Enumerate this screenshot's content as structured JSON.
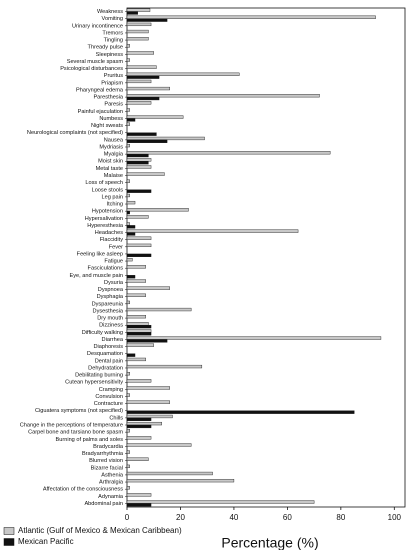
{
  "chart_data": {
    "type": "hbar",
    "x_label": "Percentage (%)",
    "categories": [
      "Weakness",
      "Vomiting",
      "Urinary incontinence",
      "Tremors",
      "Tingling",
      "Thready pulse",
      "Sleepiness",
      "Several muscle spasm",
      "Psicological disturbances",
      "Pruritus",
      "Priapism",
      "Pharyngeal edema",
      "Paresthesia",
      "Paresis",
      "Painful ejaculation",
      "Numbess",
      "Night sweats",
      "Neurological complaints (not specified)",
      "Nausea",
      "Mydriasis",
      "Myalgia",
      "Moist skin",
      "Metal taste",
      "Malaise",
      "Loss of speech",
      "Loose stools",
      "Leg pain",
      "Itching",
      "Hypotension",
      "Hypersalivation",
      "Hyperesthesia",
      "Headaches",
      "Flaccidity",
      "Fever",
      "Feeling like asleep",
      "Fatigue",
      "Fasciculations",
      "Eye, and muscle pain",
      "Dysuria",
      "Dyspnoea",
      "Dysphagia",
      "Dyspareunia",
      "Dysesthesia",
      "Dry mouth",
      "Dizziness",
      "Difficulty walking",
      "Diarrhea",
      "Diaphoresis",
      "Desquamation",
      "Dental pain",
      "Dehydratation",
      "Debilitating burning",
      "Cutean hypersensitivity",
      "Cramping",
      "Convulsion",
      "Contracture",
      "Ciguatera symptoms (not specified)",
      "Chills",
      "Change in the perceptions of temperature",
      "Carpel bone and tarsiano bone spasm",
      "Burning of palms and soles",
      "Bradycardia",
      "Bradyarrhythmia",
      "Blurred vision",
      "Bizarre facial",
      "Asthenia",
      "Arthralgia",
      "Affectation of the consciousness",
      "Adynamia",
      "Abdominal pain"
    ],
    "series": [
      {
        "name": "Atlantic (Gulf of Mexico & Mexican Caribbean)",
        "color": "#c8c8c8",
        "values": [
          8.6,
          93,
          9,
          8,
          8,
          1,
          10,
          1,
          11,
          42,
          9,
          16,
          72,
          9,
          1,
          21,
          1,
          null,
          29,
          1,
          76,
          9,
          9,
          14,
          1,
          null,
          1,
          3,
          23,
          8,
          1,
          64,
          9,
          9,
          null,
          2,
          7,
          null,
          7,
          16,
          7,
          1,
          24,
          7,
          8,
          9,
          95,
          10,
          null,
          7,
          28,
          1,
          9,
          16,
          1,
          16,
          null,
          17,
          13,
          1,
          9,
          24,
          1,
          8,
          1,
          32,
          40,
          1,
          9,
          70
        ]
      },
      {
        "name": "Mexican Pacific",
        "color": "#111111",
        "values": [
          4,
          15,
          null,
          null,
          null,
          null,
          null,
          null,
          null,
          12,
          null,
          null,
          12,
          null,
          null,
          3,
          null,
          11,
          15,
          null,
          8,
          8,
          null,
          null,
          null,
          9,
          null,
          null,
          1,
          null,
          3,
          3,
          null,
          null,
          9,
          null,
          null,
          3,
          null,
          null,
          null,
          null,
          null,
          null,
          9,
          9,
          15,
          null,
          3,
          null,
          null,
          null,
          null,
          null,
          null,
          null,
          85,
          9,
          9,
          null,
          null,
          null,
          null,
          null,
          null,
          null,
          null,
          null,
          null,
          9
        ]
      }
    ],
    "xlim": [
      0,
      104
    ],
    "xticks": [
      0,
      20,
      40,
      60,
      80,
      100
    ],
    "legend": "bottom-left"
  }
}
